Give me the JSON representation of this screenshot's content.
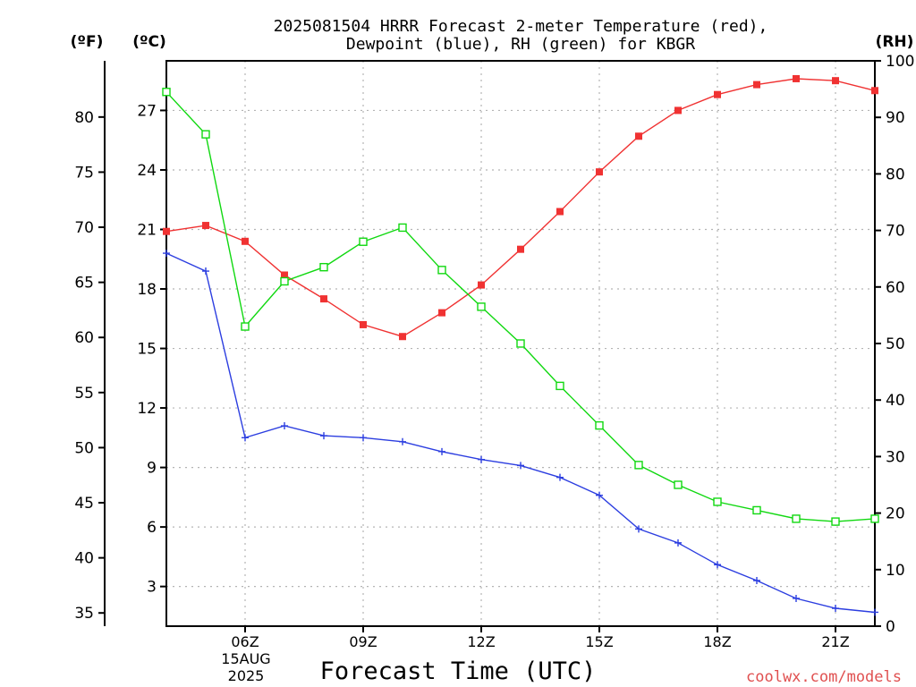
{
  "title_line1": "2025081504 HRRR Forecast 2-meter Temperature (red),",
  "title_line2": "Dewpoint (blue), RH (green) for KBGR",
  "unit_f": "(ºF)",
  "unit_c": "(ºC)",
  "unit_rh": "(RH)",
  "xlabel": "Forecast Time (UTC)",
  "date_line1": "15AUG",
  "date_line2": "2025",
  "credit": "coolwx.com/models",
  "colors": {
    "temperature": "#f03232",
    "dewpoint": "#2c3ee0",
    "rh": "#10d810",
    "grid": "#b4b4b4",
    "credit": "#e05050"
  },
  "chart_data": {
    "type": "line",
    "x": [
      "04Z",
      "05Z",
      "06Z",
      "07Z",
      "08Z",
      "09Z",
      "10Z",
      "11Z",
      "12Z",
      "13Z",
      "14Z",
      "15Z",
      "16Z",
      "17Z",
      "18Z",
      "19Z",
      "20Z",
      "21Z",
      "22Z"
    ],
    "x_tick_labels": [
      "06Z",
      "09Z",
      "12Z",
      "15Z",
      "18Z",
      "21Z"
    ],
    "y_celsius_ticks": [
      3,
      6,
      9,
      12,
      15,
      18,
      21,
      24,
      27
    ],
    "y_fahrenheit_ticks": [
      35,
      40,
      45,
      50,
      55,
      60,
      65,
      70,
      75,
      80
    ],
    "y_rh_ticks": [
      0,
      10,
      20,
      30,
      40,
      50,
      60,
      70,
      80,
      90,
      100
    ],
    "ylim_celsius": [
      1.0,
      29.5
    ],
    "ylim_rh": [
      0,
      100
    ],
    "grid": true,
    "series": [
      {
        "name": "Temperature",
        "axis": "celsius",
        "marker": "filled-square",
        "values": [
          20.9,
          21.2,
          20.4,
          18.7,
          17.5,
          16.2,
          15.6,
          16.8,
          18.2,
          20.0,
          21.9,
          23.9,
          25.7,
          27.0,
          27.8,
          28.3,
          28.6,
          28.5,
          28.0
        ]
      },
      {
        "name": "Dewpoint",
        "axis": "celsius",
        "marker": "plus",
        "values": [
          19.8,
          18.9,
          10.5,
          11.1,
          10.6,
          10.5,
          10.3,
          9.8,
          9.4,
          9.1,
          8.5,
          7.6,
          5.9,
          5.2,
          4.1,
          3.3,
          2.4,
          1.9,
          1.7
        ]
      },
      {
        "name": "RH",
        "axis": "rh",
        "marker": "open-square",
        "values": [
          94.5,
          87.0,
          53.0,
          61.0,
          63.5,
          68.0,
          70.5,
          63.0,
          56.5,
          50.0,
          42.5,
          35.5,
          28.5,
          25.0,
          22.0,
          20.5,
          19.0,
          18.5,
          19.0
        ]
      }
    ]
  }
}
